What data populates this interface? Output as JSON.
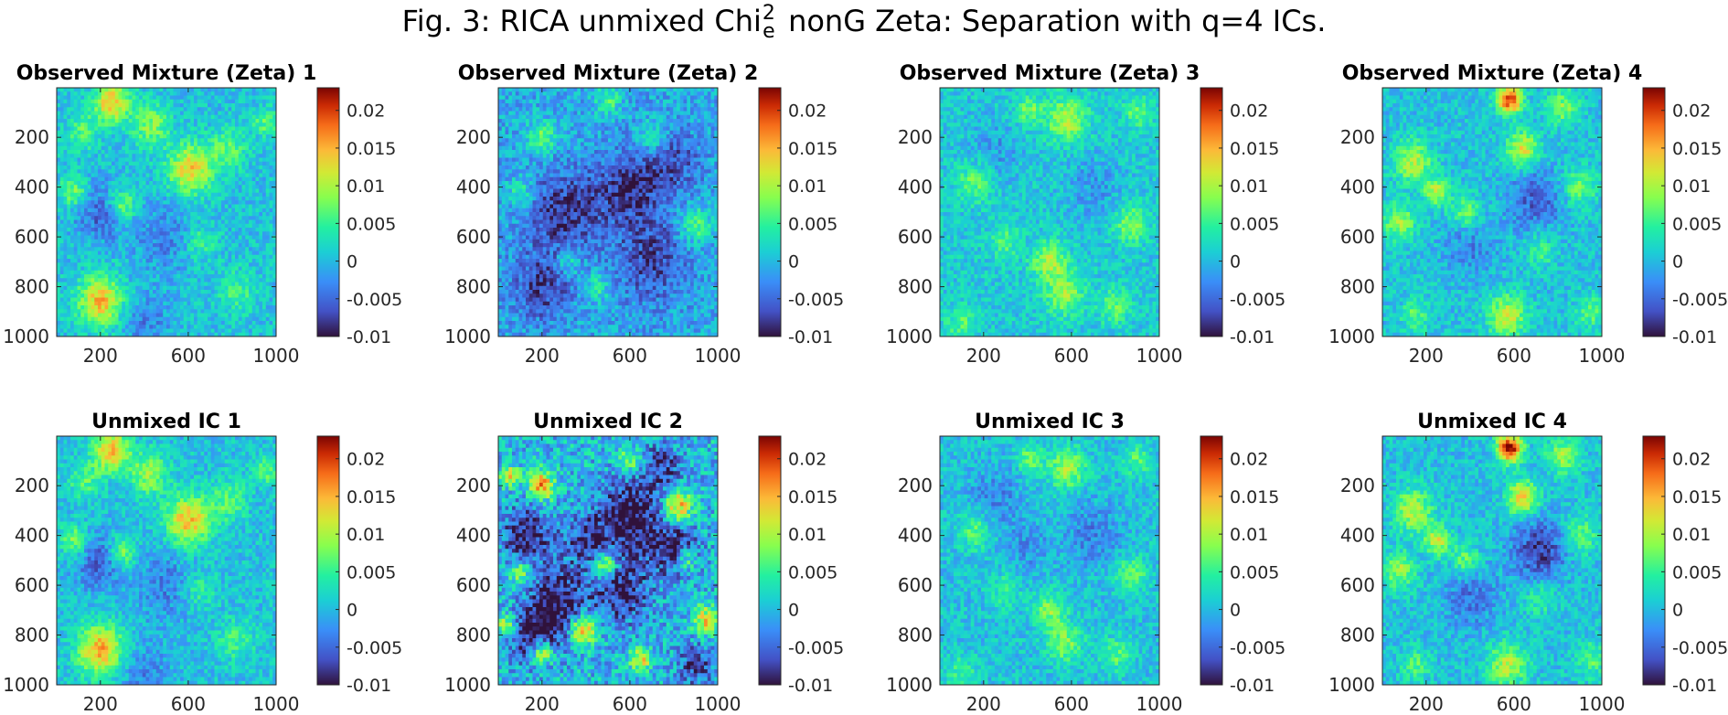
{
  "figure": {
    "title_prefix": "Fig. 3: RICA unmixed Chi",
    "title_sup": "2",
    "title_sub": "e",
    "title_suffix": " nonG Zeta: Separation with q=4 ICs."
  },
  "chart_data": {
    "type": "heatmap",
    "colormap": "turbo",
    "clim": [
      -0.01,
      0.023
    ],
    "x_ticks": [
      200,
      600,
      1000
    ],
    "y_ticks": [
      200,
      400,
      600,
      800,
      1000
    ],
    "xlim": [
      1,
      1000
    ],
    "ylim": [
      1,
      1000
    ],
    "colorbar_ticks": [
      0.02,
      0.015,
      0.01,
      0.005,
      0,
      -0.005,
      -0.01
    ],
    "colorbar_tick_labels": [
      "0.02",
      "0.015",
      "0.01",
      "0.005",
      "0",
      "-0.005",
      "-0.01"
    ],
    "panels": [
      {
        "title": "Observed Mixture (Zeta) 1",
        "base": 0.0005,
        "noise": 0.003,
        "blobs": [
          [
            250,
            60,
            55,
            0.014
          ],
          [
            610,
            330,
            70,
            0.013
          ],
          [
            300,
            470,
            45,
            0.009
          ],
          [
            200,
            860,
            70,
            0.014
          ],
          [
            430,
            150,
            60,
            0.008
          ],
          [
            80,
            420,
            45,
            0.008
          ],
          [
            120,
            180,
            50,
            0.006
          ],
          [
            780,
            250,
            60,
            0.006
          ],
          [
            650,
            620,
            55,
            0.005
          ],
          [
            950,
            140,
            40,
            0.006
          ],
          [
            820,
            820,
            60,
            0.005
          ]
        ],
        "dips": [
          [
            200,
            500,
            80,
            -0.006
          ],
          [
            500,
            600,
            100,
            -0.004
          ],
          [
            400,
            950,
            80,
            -0.004
          ]
        ]
      },
      {
        "title": "Observed Mixture (Zeta) 2",
        "base": -0.001,
        "noise": 0.0035,
        "blobs": [
          [
            200,
            200,
            45,
            0.008
          ],
          [
            500,
            50,
            40,
            0.007
          ],
          [
            900,
            550,
            50,
            0.008
          ],
          [
            700,
            200,
            45,
            0.006
          ],
          [
            100,
            420,
            40,
            0.006
          ],
          [
            320,
            700,
            40,
            0.006
          ],
          [
            450,
            800,
            40,
            0.006
          ]
        ],
        "dips": [
          [
            300,
            500,
            120,
            -0.007
          ],
          [
            600,
            400,
            110,
            -0.007
          ],
          [
            700,
            700,
            120,
            -0.006
          ],
          [
            200,
            800,
            100,
            -0.006
          ],
          [
            800,
            300,
            90,
            -0.005
          ]
        ]
      },
      {
        "title": "Observed Mixture (Zeta) 3",
        "base": 0.001,
        "noise": 0.003,
        "blobs": [
          [
            580,
            130,
            65,
            0.009
          ],
          [
            410,
            90,
            40,
            0.007
          ],
          [
            500,
            700,
            55,
            0.009
          ],
          [
            570,
            830,
            60,
            0.008
          ],
          [
            160,
            380,
            55,
            0.006
          ],
          [
            870,
            550,
            55,
            0.007
          ],
          [
            900,
            100,
            45,
            0.006
          ],
          [
            800,
            880,
            50,
            0.006
          ],
          [
            300,
            620,
            45,
            0.005
          ],
          [
            100,
            950,
            50,
            0.005
          ]
        ],
        "dips": [
          [
            250,
            250,
            80,
            -0.003
          ],
          [
            700,
            400,
            90,
            -0.003
          ]
        ]
      },
      {
        "title": "Observed Mixture (Zeta) 4",
        "base": 0.0005,
        "noise": 0.003,
        "blobs": [
          [
            580,
            50,
            40,
            0.02
          ],
          [
            640,
            250,
            50,
            0.012
          ],
          [
            140,
            300,
            60,
            0.01
          ],
          [
            250,
            420,
            40,
            0.01
          ],
          [
            80,
            540,
            50,
            0.009
          ],
          [
            570,
            920,
            60,
            0.011
          ],
          [
            820,
            80,
            50,
            0.008
          ],
          [
            900,
            400,
            55,
            0.007
          ],
          [
            380,
            500,
            45,
            0.007
          ],
          [
            950,
            900,
            50,
            0.006
          ],
          [
            150,
            920,
            45,
            0.006
          ],
          [
            720,
            650,
            50,
            0.005
          ]
        ],
        "dips": [
          [
            700,
            450,
            90,
            -0.006
          ],
          [
            400,
            650,
            80,
            -0.004
          ]
        ]
      },
      {
        "title": "Unmixed IC 1",
        "base": 0.0005,
        "noise": 0.003,
        "blobs": [
          [
            250,
            60,
            55,
            0.015
          ],
          [
            600,
            340,
            70,
            0.014
          ],
          [
            300,
            470,
            45,
            0.009
          ],
          [
            200,
            860,
            70,
            0.015
          ],
          [
            420,
            150,
            60,
            0.009
          ],
          [
            80,
            420,
            45,
            0.008
          ],
          [
            130,
            180,
            50,
            0.006
          ],
          [
            780,
            260,
            60,
            0.006
          ],
          [
            650,
            620,
            55,
            0.005
          ],
          [
            950,
            140,
            40,
            0.006
          ],
          [
            820,
            820,
            60,
            0.005
          ]
        ],
        "dips": [
          [
            200,
            500,
            80,
            -0.006
          ],
          [
            500,
            600,
            100,
            -0.004
          ],
          [
            400,
            950,
            80,
            -0.004
          ]
        ]
      },
      {
        "title": "Unmixed IC 2",
        "base": 0.0,
        "noise": 0.005,
        "blobs": [
          [
            200,
            200,
            40,
            0.017
          ],
          [
            820,
            280,
            45,
            0.016
          ],
          [
            490,
            520,
            35,
            0.014
          ],
          [
            390,
            780,
            40,
            0.017
          ],
          [
            200,
            870,
            35,
            0.015
          ],
          [
            50,
            160,
            30,
            0.012
          ],
          [
            950,
            740,
            40,
            0.013
          ],
          [
            40,
            760,
            30,
            0.012
          ],
          [
            650,
            900,
            35,
            0.012
          ],
          [
            100,
            550,
            35,
            0.01
          ],
          [
            850,
            500,
            35,
            0.01
          ],
          [
            600,
            100,
            35,
            0.009
          ]
        ],
        "dips": [
          [
            600,
            330,
            100,
            -0.011
          ],
          [
            130,
            400,
            80,
            -0.01
          ],
          [
            270,
            660,
            90,
            -0.01
          ],
          [
            170,
            800,
            80,
            -0.01
          ],
          [
            560,
            620,
            90,
            -0.009
          ],
          [
            800,
            460,
            80,
            -0.009
          ],
          [
            750,
            130,
            70,
            -0.007
          ],
          [
            400,
            420,
            70,
            -0.007
          ],
          [
            900,
            920,
            60,
            -0.007
          ]
        ]
      },
      {
        "title": "Unmixed IC 3",
        "base": 0.0005,
        "noise": 0.003,
        "blobs": [
          [
            580,
            130,
            60,
            0.009
          ],
          [
            410,
            90,
            40,
            0.007
          ],
          [
            500,
            700,
            50,
            0.008
          ],
          [
            570,
            830,
            55,
            0.008
          ],
          [
            160,
            380,
            55,
            0.006
          ],
          [
            870,
            550,
            50,
            0.007
          ],
          [
            900,
            100,
            45,
            0.006
          ],
          [
            800,
            880,
            50,
            0.006
          ],
          [
            300,
            620,
            45,
            0.005
          ],
          [
            100,
            950,
            50,
            0.005
          ]
        ],
        "dips": [
          [
            250,
            250,
            80,
            -0.004
          ],
          [
            700,
            400,
            90,
            -0.004
          ],
          [
            400,
            450,
            70,
            -0.003
          ]
        ]
      },
      {
        "title": "Unmixed IC 4",
        "base": 0.0005,
        "noise": 0.003,
        "blobs": [
          [
            580,
            50,
            40,
            0.022
          ],
          [
            640,
            250,
            50,
            0.013
          ],
          [
            140,
            300,
            60,
            0.01
          ],
          [
            250,
            420,
            40,
            0.011
          ],
          [
            80,
            540,
            50,
            0.009
          ],
          [
            570,
            920,
            60,
            0.01
          ],
          [
            820,
            80,
            50,
            0.009
          ],
          [
            900,
            400,
            55,
            0.007
          ],
          [
            380,
            500,
            45,
            0.007
          ],
          [
            950,
            900,
            50,
            0.006
          ],
          [
            150,
            920,
            45,
            0.006
          ],
          [
            720,
            650,
            50,
            0.005
          ]
        ],
        "dips": [
          [
            720,
            460,
            90,
            -0.008
          ],
          [
            400,
            650,
            80,
            -0.005
          ]
        ]
      }
    ]
  }
}
